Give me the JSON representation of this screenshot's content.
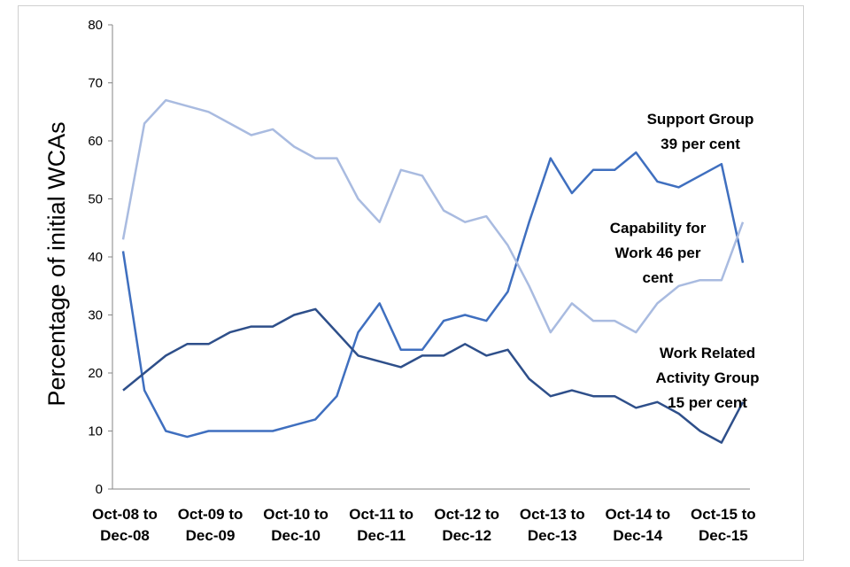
{
  "chart_data": {
    "type": "line",
    "title": "",
    "xlabel": "",
    "ylabel": "Percentage of initial WCAs",
    "ylim": [
      0,
      80
    ],
    "yticks": [
      0,
      10,
      20,
      30,
      40,
      50,
      60,
      70,
      80
    ],
    "grid": false,
    "x_tick_labels": [
      [
        "Oct-08 to",
        "Dec-08"
      ],
      [
        "Oct-09 to",
        "Dec-09"
      ],
      [
        "Oct-10 to",
        "Dec-10"
      ],
      [
        "Oct-11 to",
        "Dec-11"
      ],
      [
        "Oct-12 to",
        "Dec-12"
      ],
      [
        "Oct-13 to",
        "Dec-13"
      ],
      [
        "Oct-14 to",
        "Dec-14"
      ],
      [
        "Oct-15 to",
        "Dec-15"
      ]
    ],
    "series": [
      {
        "key": "support",
        "color": "#3f6fbf",
        "values": [
          41,
          17,
          10,
          9,
          10,
          10,
          10,
          10,
          11,
          12,
          16,
          27,
          32,
          24,
          24,
          29,
          30,
          29,
          34,
          46,
          57,
          51,
          55,
          55,
          58,
          53,
          52,
          54,
          56,
          39
        ]
      },
      {
        "key": "capability",
        "color": "#a9bbe0",
        "values": [
          43,
          63,
          67,
          66,
          65,
          63,
          61,
          62,
          59,
          57,
          57,
          50,
          46,
          55,
          54,
          48,
          46,
          47,
          42,
          35,
          27,
          32,
          29,
          29,
          27,
          32,
          35,
          36,
          36,
          46
        ]
      },
      {
        "key": "wrag",
        "color": "#2e4f8a",
        "values": [
          17,
          20,
          23,
          25,
          25,
          27,
          28,
          28,
          30,
          31,
          27,
          23,
          22,
          21,
          23,
          23,
          25,
          23,
          24,
          19,
          16,
          17,
          16,
          16,
          14,
          15,
          13,
          10,
          8,
          15
        ]
      }
    ],
    "annotations": [
      {
        "key": "support",
        "lines": [
          "Support Group",
          "39 per cent"
        ]
      },
      {
        "key": "capability",
        "lines": [
          "Capability for",
          "Work  46 per",
          "cent"
        ]
      },
      {
        "key": "wrag",
        "lines": [
          "Work Related",
          "Activity Group",
          "15 per cent"
        ]
      }
    ]
  }
}
